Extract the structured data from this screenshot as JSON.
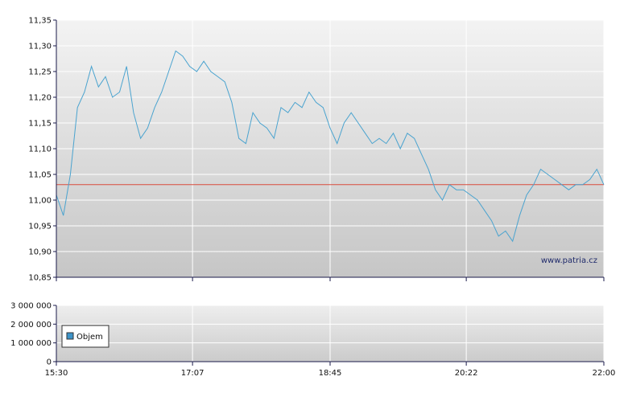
{
  "watermark": "www.patria.cz",
  "colors": {
    "price_line": "#4aa3cf",
    "reference_line": "#d84c3c",
    "axis": "#1a1a4a",
    "grid": "#ffffff",
    "legend_swatch": "#3d93c8"
  },
  "chart_data": [
    {
      "type": "line",
      "x_ticks": [
        "15:30",
        "17:07",
        "18:45",
        "20:22",
        "22:00"
      ],
      "y_ticks": [
        "11,35",
        "11,30",
        "11,25",
        "11,20",
        "11,15",
        "11,10",
        "11,05",
        "11,00",
        "10,95",
        "10,90",
        "10,85"
      ],
      "ylim": [
        10.85,
        11.35
      ],
      "xlim": [
        "15:30",
        "22:00"
      ],
      "reference_line": 11.03,
      "grid": true,
      "series": [
        {
          "x": [
            "15:30",
            "15:35",
            "15:40",
            "15:45",
            "15:50",
            "15:55",
            "16:00",
            "16:05",
            "16:10",
            "16:15",
            "16:20",
            "16:25",
            "16:30",
            "16:35",
            "16:40",
            "16:45",
            "16:50",
            "16:55",
            "17:00",
            "17:05",
            "17:10",
            "17:15",
            "17:20",
            "17:25",
            "17:30",
            "17:35",
            "17:40",
            "17:45",
            "17:50",
            "17:55",
            "18:00",
            "18:05",
            "18:10",
            "18:15",
            "18:20",
            "18:25",
            "18:30",
            "18:35",
            "18:40",
            "18:45",
            "18:50",
            "18:55",
            "19:00",
            "19:05",
            "19:10",
            "19:15",
            "19:20",
            "19:25",
            "19:30",
            "19:35",
            "19:40",
            "19:45",
            "19:50",
            "19:55",
            "20:00",
            "20:05",
            "20:10",
            "20:15",
            "20:20",
            "20:25",
            "20:30",
            "20:35",
            "20:40",
            "20:45",
            "20:50",
            "20:55",
            "21:00",
            "21:05",
            "21:10",
            "21:15",
            "21:20",
            "21:25",
            "21:30",
            "21:35",
            "21:40",
            "21:45",
            "21:50",
            "21:55",
            "22:00"
          ],
          "y": [
            11.01,
            10.97,
            11.05,
            11.18,
            11.21,
            11.26,
            11.22,
            11.24,
            11.2,
            11.21,
            11.26,
            11.17,
            11.12,
            11.14,
            11.18,
            11.21,
            11.25,
            11.29,
            11.28,
            11.26,
            11.25,
            11.27,
            11.25,
            11.24,
            11.23,
            11.19,
            11.12,
            11.11,
            11.17,
            11.15,
            11.14,
            11.12,
            11.18,
            11.17,
            11.19,
            11.18,
            11.21,
            11.19,
            11.18,
            11.14,
            11.11,
            11.15,
            11.17,
            11.15,
            11.13,
            11.11,
            11.12,
            11.11,
            11.13,
            11.1,
            11.13,
            11.12,
            11.09,
            11.06,
            11.02,
            11.0,
            11.03,
            11.02,
            11.02,
            11.01,
            11.0,
            10.98,
            10.96,
            10.93,
            10.94,
            10.92,
            10.97,
            11.01,
            11.03,
            11.06,
            11.05,
            11.04,
            11.03,
            11.02,
            11.03,
            11.03,
            11.04,
            11.06,
            11.03
          ]
        }
      ]
    },
    {
      "type": "bar",
      "x_ticks": [
        "15:30",
        "17:07",
        "18:45",
        "20:22",
        "22:00"
      ],
      "y_ticks": [
        "3 000 000",
        "2 000 000",
        "1 000 000",
        "0"
      ],
      "ylim": [
        0,
        3000000
      ],
      "grid": true,
      "legend": "top-left",
      "series": [
        {
          "name": "Objem",
          "values": [
            0
          ]
        }
      ]
    }
  ]
}
